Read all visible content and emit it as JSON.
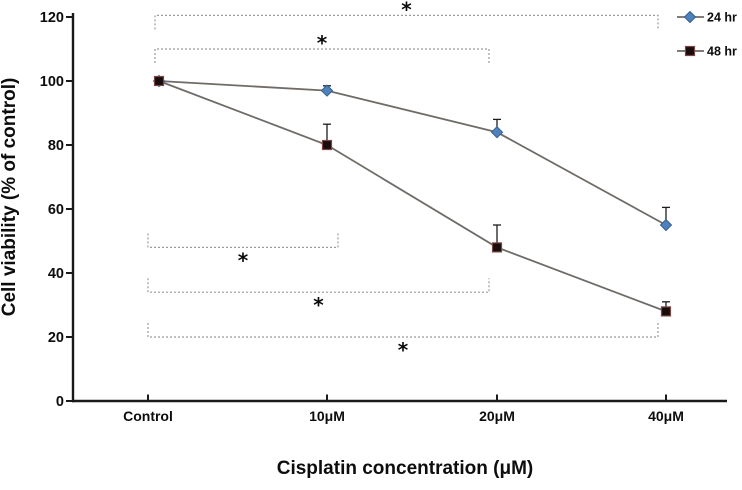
{
  "chart_data": {
    "type": "line",
    "title": "",
    "xlabel": "Cisplatin concentration (μM)",
    "ylabel": "Cell viability (% of control)",
    "categories": [
      "Control",
      "10μM",
      "20μM",
      "40μM"
    ],
    "y_ticks": [
      0,
      20,
      40,
      60,
      80,
      100,
      120
    ],
    "ylim": [
      0,
      120
    ],
    "grid": false,
    "legend_position": "top-right",
    "colors": {
      "axis": "#1a1a1a",
      "series_line": "#6f6b67",
      "bracket": "#9b9b9b",
      "error_bar": "#1c1c1c",
      "marker_24hr": "#4f81bd",
      "marker_24hr_edge": "#365f91",
      "marker_48hr": "#190c0c",
      "marker_48hr_edge": "#794643"
    },
    "series": [
      {
        "name": "24 hr",
        "marker": "diamond",
        "color": "#4f81bd",
        "marker_edge": "#365f91",
        "line_color": "#6f6b67",
        "values": [
          100,
          97,
          84,
          55
        ],
        "errors_up": [
          0,
          1.5,
          4,
          5.5
        ]
      },
      {
        "name": "48 hr",
        "marker": "square",
        "color": "#190c0c",
        "marker_edge": "#794643",
        "line_color": "#6f6b67",
        "values": [
          100,
          80,
          48,
          28
        ],
        "errors_up": [
          0,
          6.5,
          7,
          3
        ]
      }
    ],
    "significance_brackets": [
      {
        "from": "Control",
        "to": "40μM",
        "label": "*",
        "position": "above",
        "y_value": 120.5,
        "tick_direction": "down"
      },
      {
        "from": "Control",
        "to": "20μM",
        "label": "*",
        "position": "above",
        "y_value": 110,
        "tick_direction": "down"
      },
      {
        "from": "Control",
        "to": "10μM",
        "label": "*",
        "position": "below",
        "y_value": 48,
        "tick_direction": "up"
      },
      {
        "from": "Control",
        "to": "20μM",
        "label": "*",
        "position": "below",
        "y_value": 34,
        "tick_direction": "up"
      },
      {
        "from": "Control",
        "to": "40μM",
        "label": "*",
        "position": "below",
        "y_value": 20,
        "tick_direction": "up"
      }
    ]
  }
}
